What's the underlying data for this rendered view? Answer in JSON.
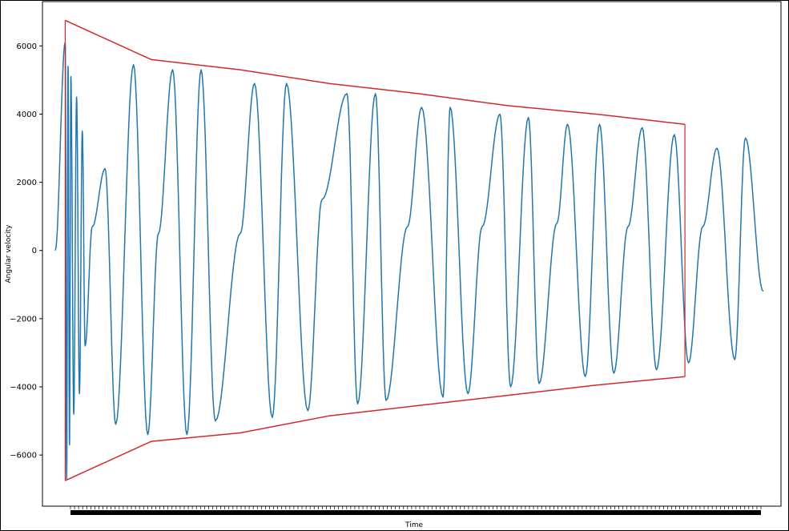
{
  "chart_data": {
    "type": "line",
    "xlabel": "Time",
    "ylabel": "Angular velocity",
    "title": "",
    "ylim": [
      -7500,
      7300
    ],
    "yticks": [
      -6000,
      -4000,
      -2000,
      0,
      2000,
      4000,
      6000
    ],
    "ytick_labels": [
      "−6000",
      "−4000",
      "−2000",
      "0",
      "2000",
      "4000",
      "6000"
    ],
    "x_tick_labels_legible": false,
    "grid": false,
    "legend": "none",
    "series": [
      {
        "color": "#1f77b4",
        "description_points": {
          "x": [
            0,
            1.4,
            1.6,
            1.8,
            2.0,
            2.2,
            2.6,
            3.0,
            3.4,
            3.8,
            4.2,
            5.2,
            7.0,
            8.5,
            11.0,
            13.0,
            14.5,
            16.5,
            18.5,
            20.5,
            22.5,
            26.0,
            28.0,
            30.5,
            32.5,
            35.5,
            37.5,
            41.0,
            42.5,
            45.0,
            46.5,
            49.5,
            51.5,
            54.5,
            55.5,
            58.0,
            60.0,
            62.5,
            64.0,
            66.5,
            68.0,
            70.5,
            72.0,
            74.5,
            76.5,
            78.5,
            80.5,
            82.5,
            84.5,
            87.0,
            89.0,
            91.0,
            93.0,
            95.5,
            97.0,
            99.5
          ],
          "y": [
            0,
            6100,
            -6700,
            5400,
            -5700,
            5100,
            -4800,
            4500,
            -4200,
            3500,
            -2800,
            700,
            2400,
            -5100,
            5450,
            -5400,
            500,
            5300,
            -5400,
            5300,
            -5000,
            500,
            4900,
            -4900,
            4900,
            -4700,
            1500,
            4600,
            -4500,
            4600,
            -4400,
            700,
            4200,
            -4300,
            4200,
            -4200,
            700,
            4000,
            -4000,
            3900,
            -3900,
            800,
            3700,
            -3700,
            3700,
            -3600,
            700,
            3600,
            -3500,
            3400,
            -3300,
            700,
            3000,
            -3200,
            3300,
            -1200
          ]
        }
      },
      {
        "color": "#d62728",
        "name_note": "upper envelope",
        "x": [
          1.4,
          13.5,
          26.0,
          38.5,
          51.0,
          63.5,
          76.0,
          88.5
        ],
        "y": [
          6750,
          5600,
          5300,
          4900,
          4600,
          4250,
          4000,
          3700
        ]
      },
      {
        "color": "#d62728",
        "name_note": "lower envelope",
        "x": [
          1.4,
          13.5,
          26.0,
          38.5,
          51.0,
          63.5,
          76.0,
          88.5
        ],
        "y": [
          -6750,
          -5600,
          -5350,
          -4850,
          -4550,
          -4250,
          -3950,
          -3700
        ]
      }
    ]
  }
}
